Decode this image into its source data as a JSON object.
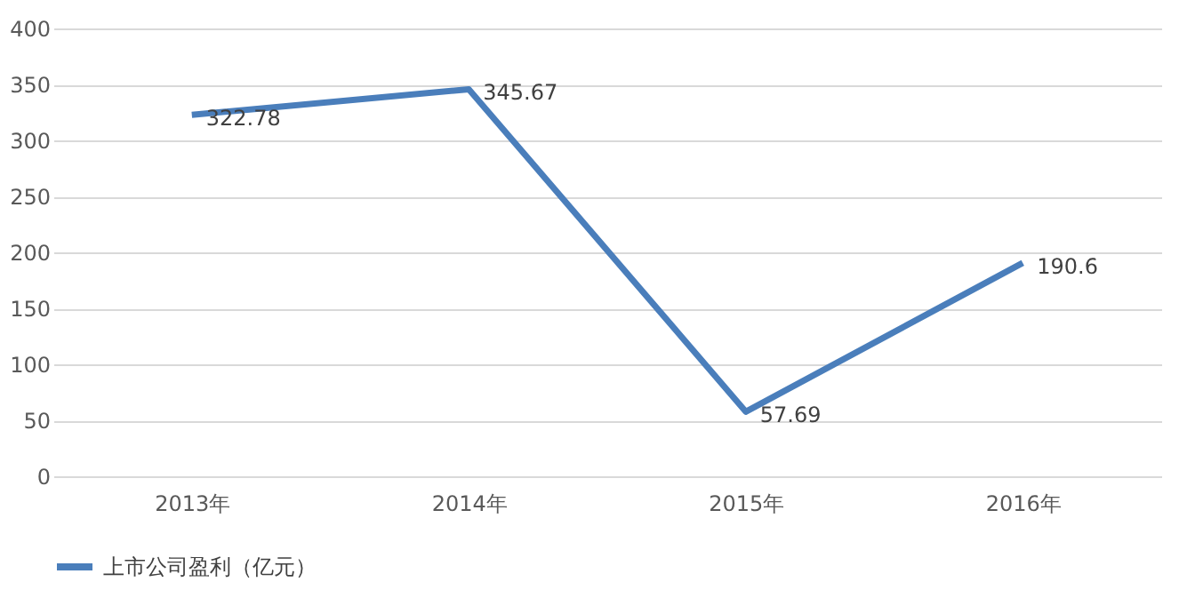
{
  "chart_data": {
    "type": "line",
    "categories": [
      "2013年",
      "2014年",
      "2015年",
      "2016年"
    ],
    "series": [
      {
        "name": "上市公司盈利（亿元）",
        "color": "#4a7ebb",
        "values": [
          322.78,
          345.67,
          57.69,
          190.6
        ]
      }
    ],
    "ylim": [
      0,
      400
    ],
    "yticks": [
      0,
      50,
      100,
      150,
      200,
      250,
      300,
      350,
      400
    ],
    "grid": "y",
    "legend": "bottom",
    "data_labels": true,
    "marker": "none",
    "line_style": "solid"
  }
}
